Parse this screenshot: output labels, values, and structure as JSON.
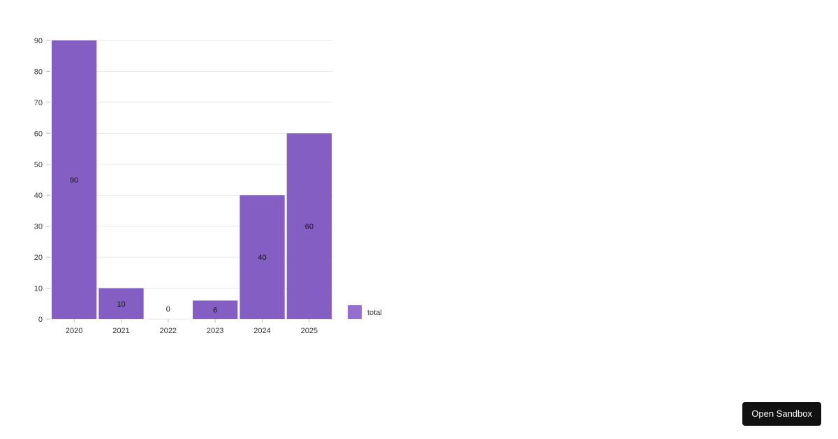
{
  "chart_data": {
    "type": "bar",
    "categories": [
      "2020",
      "2021",
      "2022",
      "2023",
      "2024",
      "2025"
    ],
    "series": [
      {
        "name": "total",
        "values": [
          90,
          10,
          0,
          6,
          40,
          60
        ]
      }
    ],
    "data_labels": [
      "90",
      "10",
      "0",
      "6",
      "40",
      "60"
    ],
    "y_ticks": [
      0,
      10,
      20,
      30,
      40,
      50,
      60,
      70,
      80,
      90
    ],
    "ylim": [
      0,
      90
    ],
    "grid": true,
    "legend_position": "right-bottom",
    "colors": {
      "bar": "#845ec2",
      "grid": "#e8e8e8",
      "axis": "#bdbdbd"
    }
  },
  "toolbar": {
    "open_sandbox_label": "Open Sandbox"
  }
}
